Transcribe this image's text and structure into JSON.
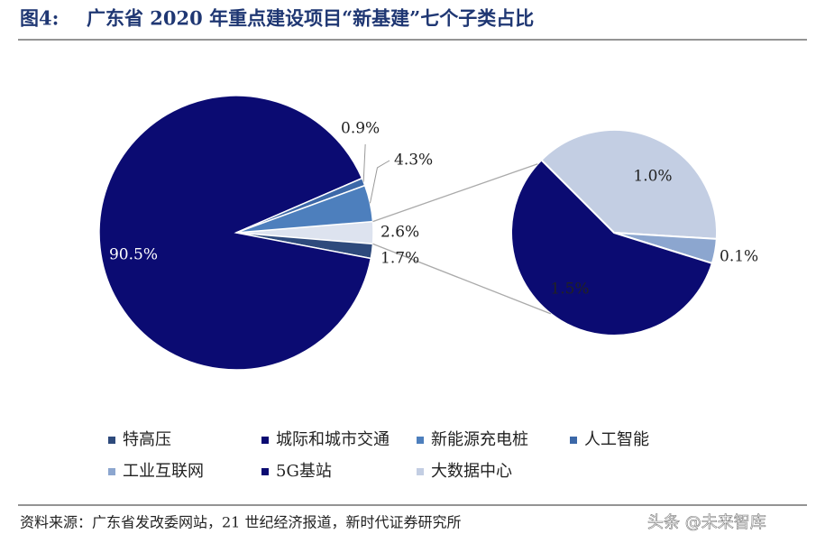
{
  "chart_data": {
    "type": "pie-of-pie",
    "figure_label": "图4:",
    "title": "广东省 2020 年重点建设项目“新基建”七个子类占比",
    "main_pie": {
      "values": [
        2.6,
        1.7,
        90.5,
        0.9,
        4.3
      ],
      "value_labels": [
        "2.6%",
        "1.7%",
        "90.5%",
        "0.9%",
        "4.3%"
      ],
      "colors": [
        "#dde3ef",
        "#2e4a7c",
        "#0b0b72",
        "#3c68a8",
        "#4d7fbd"
      ]
    },
    "sub_pie": {
      "values": [
        1.0,
        0.1,
        1.5
      ],
      "value_labels": [
        "1.0%",
        "0.1%",
        "1.5%"
      ],
      "colors": [
        "#c3cee3",
        "#8ca6cf",
        "#0b0b72"
      ]
    },
    "legend": [
      {
        "name": "特高压",
        "color": "#2e4a7c"
      },
      {
        "name": "城际和城市交通",
        "color": "#0b0b72"
      },
      {
        "name": "新能源充电桩",
        "color": "#4d7fbd"
      },
      {
        "name": "人工智能",
        "color": "#3c68a8"
      },
      {
        "name": "工业互联网",
        "color": "#8ca6cf"
      },
      {
        "name": "5G基站",
        "color": "#0b0b72"
      },
      {
        "name": "大数据中心",
        "color": "#c3cee3"
      }
    ],
    "source": "资料来源：广东省发改委网站，21 世纪经济报道，新时代证券研究所",
    "watermark": "头条 @未来智库"
  }
}
